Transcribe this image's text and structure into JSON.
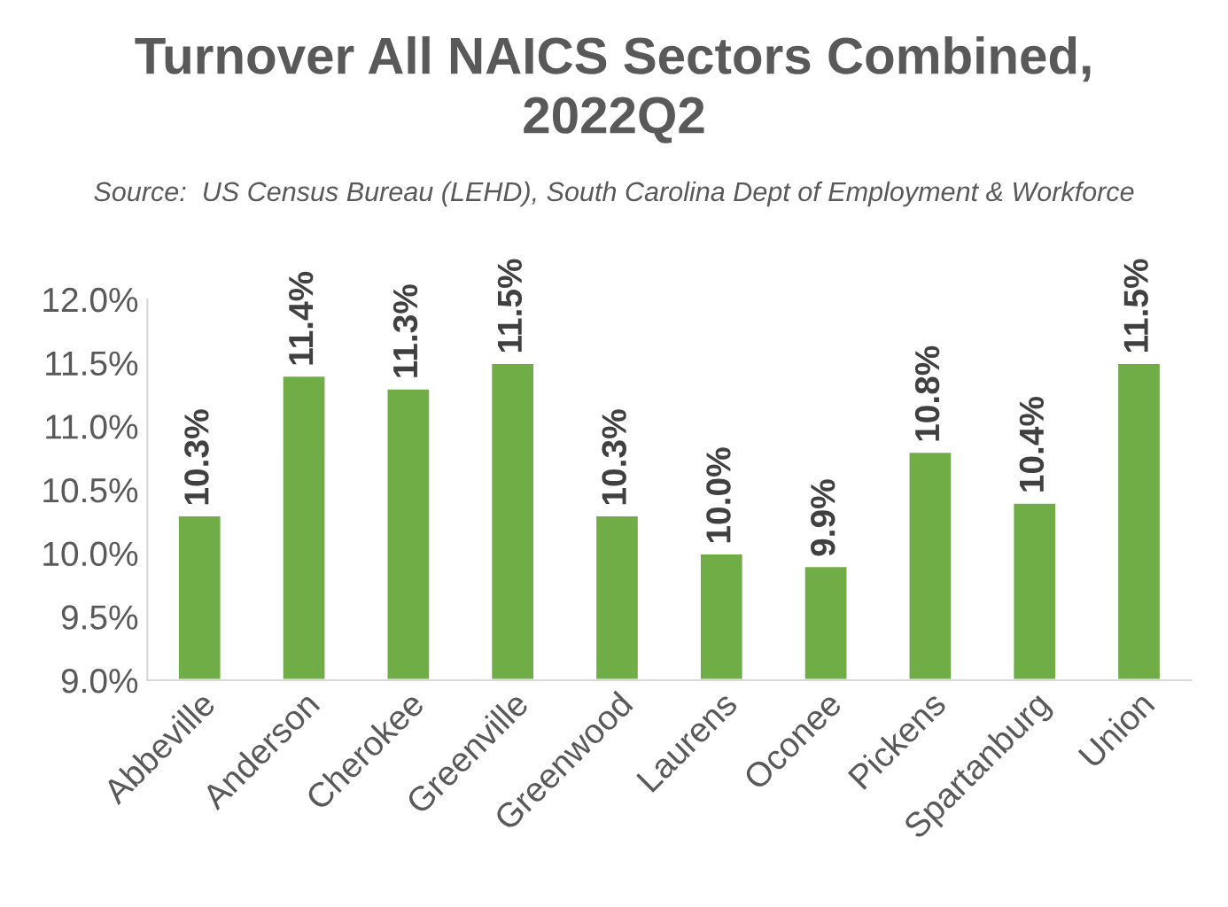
{
  "chart_data": {
    "type": "bar",
    "title": "Turnover All NAICS Sectors Combined,\n2022Q2",
    "annotations": [
      "Source:  US Census Bureau (LEHD), South Carolina Dept of Employment & Workforce"
    ],
    "categories": [
      "Abbeville",
      "Anderson",
      "Cherokee",
      "Greenville",
      "Greenwood",
      "Laurens",
      "Oconee",
      "Pickens",
      "Spartanburg",
      "Union"
    ],
    "values": [
      10.3,
      11.4,
      11.3,
      11.5,
      10.3,
      10.0,
      9.9,
      10.8,
      10.4,
      11.5
    ],
    "value_labels": [
      "10.3%",
      "11.4%",
      "11.3%",
      "11.5%",
      "10.3%",
      "10.0%",
      "9.9%",
      "10.8%",
      "10.4%",
      "11.5%"
    ],
    "color": "#70ad47",
    "ylim": [
      9.0,
      12.0
    ],
    "yticks": [
      {
        "value": 9.0,
        "label": "9.0%"
      },
      {
        "value": 9.5,
        "label": "9.5%"
      },
      {
        "value": 10.0,
        "label": "10.0%"
      },
      {
        "value": 10.5,
        "label": "10.5%"
      },
      {
        "value": 11.0,
        "label": "11.0%"
      },
      {
        "value": 11.5,
        "label": "11.5%"
      },
      {
        "value": 12.0,
        "label": "12.0%"
      }
    ],
    "grid": false,
    "legend": false
  }
}
